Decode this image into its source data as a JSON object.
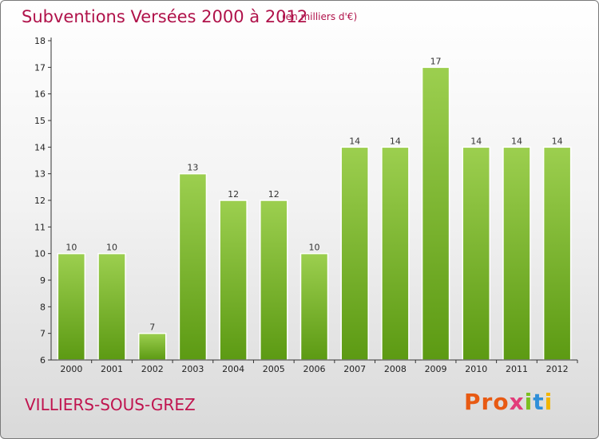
{
  "header": {
    "title": "Subventions Versées 2000 à 2012",
    "unit_note": "(en milliers d'€)"
  },
  "footer": {
    "town": "VILLIERS-SOUS-GREZ",
    "logo_parts": [
      "Pro",
      "x",
      "i",
      "t",
      "i"
    ]
  },
  "colors": {
    "title": "#b0124a",
    "bar_top": "#9ccf4f",
    "bar_bottom": "#5c9a13",
    "axis": "#333333"
  },
  "chart_data": {
    "type": "bar",
    "title": "Subventions Versées 2000 à 2012",
    "xlabel": "",
    "ylabel": "",
    "categories": [
      "2000",
      "2001",
      "2002",
      "2003",
      "2004",
      "2005",
      "2006",
      "2007",
      "2008",
      "2009",
      "2010",
      "2011",
      "2012"
    ],
    "values": [
      10,
      10,
      7,
      13,
      12,
      12,
      10,
      14,
      14,
      17,
      14,
      14,
      14
    ],
    "ylim": [
      6,
      18
    ],
    "yticks": [
      6,
      7,
      8,
      9,
      10,
      11,
      12,
      13,
      14,
      15,
      16,
      17,
      18
    ],
    "grid": false,
    "legend": "none"
  }
}
